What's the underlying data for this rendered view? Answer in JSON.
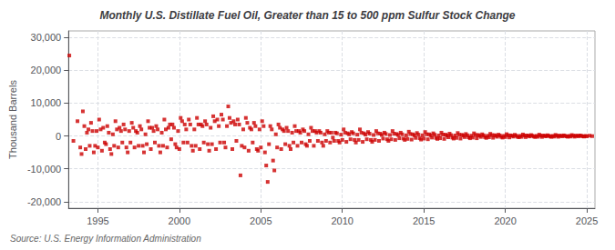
{
  "chart_data": {
    "type": "scatter",
    "title": "Monthly U.S. Distillate Fuel Oil, Greater than 15 to 500 ppm Sulfur Stock Change",
    "ylabel": "Thousand Barrels",
    "annotation": "Source: U.S. Energy Information Administration",
    "color": "#cc0000",
    "marker": "square",
    "grid": true,
    "xlim": [
      1993.2,
      2025.5
    ],
    "xticks": [
      1995,
      2000,
      2005,
      2010,
      2015,
      2020,
      2025
    ],
    "ylim": [
      -22000,
      32000
    ],
    "yticks": [
      {
        "value": -20000,
        "label": "-20,000"
      },
      {
        "value": -10000,
        "label": "-10,000"
      },
      0,
      {
        "value": 10000,
        "label": "10,000"
      },
      {
        "value": 20000,
        "label": "20,000"
      },
      {
        "value": 30000,
        "label": "30,000"
      }
    ],
    "x": [
      1993.25,
      1993.5,
      1993.75,
      1993.92,
      1994.0,
      1994.08,
      1994.17,
      1994.25,
      1994.33,
      1994.42,
      1994.5,
      1994.58,
      1994.67,
      1994.75,
      1994.83,
      1994.92,
      1995.0,
      1995.08,
      1995.17,
      1995.25,
      1995.33,
      1995.42,
      1995.5,
      1995.58,
      1995.67,
      1995.75,
      1995.83,
      1995.92,
      1996.0,
      1996.08,
      1996.17,
      1996.25,
      1996.33,
      1996.42,
      1996.5,
      1996.58,
      1996.67,
      1996.75,
      1996.83,
      1996.92,
      1997.0,
      1997.08,
      1997.17,
      1997.25,
      1997.33,
      1997.42,
      1997.5,
      1997.58,
      1997.67,
      1997.75,
      1997.83,
      1997.92,
      1998.0,
      1998.08,
      1998.17,
      1998.25,
      1998.33,
      1998.42,
      1998.5,
      1998.58,
      1998.67,
      1998.75,
      1998.83,
      1998.92,
      1999.0,
      1999.08,
      1999.17,
      1999.25,
      1999.33,
      1999.42,
      1999.5,
      1999.58,
      1999.67,
      1999.75,
      1999.83,
      1999.92,
      2000.0,
      2000.08,
      2000.17,
      2000.25,
      2000.33,
      2000.42,
      2000.5,
      2000.58,
      2000.67,
      2000.75,
      2000.83,
      2000.92,
      2001.0,
      2001.08,
      2001.17,
      2001.25,
      2001.33,
      2001.42,
      2001.5,
      2001.58,
      2001.67,
      2001.75,
      2001.83,
      2001.92,
      2002.0,
      2002.08,
      2002.17,
      2002.25,
      2002.33,
      2002.42,
      2002.5,
      2002.58,
      2002.67,
      2002.75,
      2002.83,
      2002.92,
      2003.0,
      2003.08,
      2003.17,
      2003.25,
      2003.33,
      2003.42,
      2003.5,
      2003.58,
      2003.67,
      2003.75,
      2003.83,
      2003.92,
      2004.0,
      2004.08,
      2004.17,
      2004.25,
      2004.33,
      2004.42,
      2004.5,
      2004.58,
      2004.67,
      2004.75,
      2004.83,
      2004.92,
      2005.0,
      2005.08,
      2005.17,
      2005.25,
      2005.33,
      2005.42,
      2005.5,
      2005.58,
      2005.67,
      2005.75,
      2005.83,
      2005.92,
      2006.0,
      2006.08,
      2006.17,
      2006.25,
      2006.33,
      2006.42,
      2006.5,
      2006.58,
      2006.67,
      2006.75,
      2006.83,
      2006.92,
      2007.0,
      2007.08,
      2007.17,
      2007.25,
      2007.33,
      2007.42,
      2007.5,
      2007.58,
      2007.67,
      2007.75,
      2007.83,
      2007.92,
      2008.0,
      2008.08,
      2008.17,
      2008.25,
      2008.33,
      2008.42,
      2008.5,
      2008.58,
      2008.67,
      2008.75,
      2008.83,
      2008.92,
      2009.0,
      2009.08,
      2009.17,
      2009.25,
      2009.33,
      2009.42,
      2009.5,
      2009.58,
      2009.67,
      2009.75,
      2009.83,
      2009.92,
      2010.0,
      2010.08,
      2010.17,
      2010.25,
      2010.33,
      2010.42,
      2010.5,
      2010.58,
      2010.67,
      2010.75,
      2010.83,
      2010.92,
      2011.0,
      2011.08,
      2011.17,
      2011.25,
      2011.33,
      2011.42,
      2011.5,
      2011.58,
      2011.67,
      2011.75,
      2011.83,
      2011.92,
      2012.0,
      2012.08,
      2012.17,
      2012.25,
      2012.33,
      2012.42,
      2012.5,
      2012.58,
      2012.67,
      2012.75,
      2012.83,
      2012.92,
      2013.0,
      2013.08,
      2013.17,
      2013.25,
      2013.33,
      2013.42,
      2013.5,
      2013.58,
      2013.67,
      2013.75,
      2013.83,
      2013.92,
      2014.0,
      2014.08,
      2014.17,
      2014.25,
      2014.33,
      2014.42,
      2014.5,
      2014.58,
      2014.67,
      2014.75,
      2014.83,
      2014.92,
      2015.0,
      2015.08,
      2015.17,
      2015.25,
      2015.33,
      2015.42,
      2015.5,
      2015.58,
      2015.67,
      2015.75,
      2015.83,
      2015.92,
      2016.0,
      2016.08,
      2016.17,
      2016.25,
      2016.33,
      2016.42,
      2016.5,
      2016.58,
      2016.67,
      2016.75,
      2016.83,
      2016.92,
      2017.0,
      2017.08,
      2017.17,
      2017.25,
      2017.33,
      2017.42,
      2017.5,
      2017.58,
      2017.67,
      2017.75,
      2017.83,
      2017.92,
      2018.0,
      2018.08,
      2018.17,
      2018.25,
      2018.33,
      2018.42,
      2018.5,
      2018.58,
      2018.67,
      2018.75,
      2018.83,
      2018.92,
      2019.0,
      2019.08,
      2019.17,
      2019.25,
      2019.33,
      2019.42,
      2019.5,
      2019.58,
      2019.67,
      2019.75,
      2019.83,
      2019.92,
      2020.0,
      2020.08,
      2020.17,
      2020.25,
      2020.33,
      2020.42,
      2020.5,
      2020.58,
      2020.67,
      2020.75,
      2020.83,
      2020.92,
      2021.0,
      2021.08,
      2021.17,
      2021.25,
      2021.33,
      2021.42,
      2021.5,
      2021.58,
      2021.67,
      2021.75,
      2021.83,
      2021.92,
      2022.0,
      2022.08,
      2022.17,
      2022.25,
      2022.33,
      2022.42,
      2022.5,
      2022.58,
      2022.67,
      2022.75,
      2022.83,
      2022.92,
      2023.0,
      2023.08,
      2023.17,
      2023.25,
      2023.33,
      2023.42,
      2023.5,
      2023.58,
      2023.67,
      2023.75,
      2023.83,
      2023.92,
      2024.0,
      2024.08,
      2024.17,
      2024.25,
      2024.33,
      2024.42,
      2024.5,
      2024.58,
      2024.67,
      2024.75,
      2024.83,
      2024.92,
      2025.0,
      2025.17,
      2025.33
    ],
    "values": [
      24500,
      -1500,
      4500,
      -3500,
      -5500,
      7500,
      3000,
      -4000,
      1000,
      2000,
      -3000,
      4000,
      1500,
      -5000,
      -3000,
      1500,
      -3500,
      5000,
      2000,
      -4500,
      2500,
      -2000,
      -2500,
      3000,
      1000,
      -4000,
      -5500,
      500,
      -3000,
      4500,
      2000,
      -3500,
      2500,
      1500,
      -2000,
      3500,
      2000,
      -3500,
      -5000,
      1500,
      -2000,
      4000,
      2500,
      -3500,
      1500,
      1000,
      -3000,
      3000,
      2000,
      -3000,
      -5000,
      500,
      -2500,
      4500,
      2500,
      -4000,
      2500,
      1500,
      -2000,
      3000,
      2000,
      -3000,
      -5000,
      1000,
      -3000,
      5000,
      2000,
      -3500,
      2500,
      3500,
      -1000,
      3500,
      2500,
      -2500,
      -3500,
      1500,
      -4000,
      5500,
      4500,
      -2000,
      3500,
      2000,
      -2000,
      5000,
      3500,
      -3000,
      -4500,
      2000,
      -3000,
      5500,
      3500,
      -4000,
      3500,
      3000,
      -2000,
      4500,
      3500,
      -2500,
      -4500,
      2500,
      -2500,
      6000,
      4500,
      -4000,
      5000,
      3000,
      -2000,
      6500,
      5000,
      -2000,
      -3500,
      3000,
      9000,
      5500,
      4000,
      -4000,
      4500,
      3500,
      -1500,
      5000,
      3500,
      -12000,
      -3000,
      2000,
      -3500,
      5500,
      4000,
      -4500,
      2500,
      2000,
      -2000,
      4000,
      3000,
      -4000,
      -4500,
      2000,
      -3500,
      4500,
      3000,
      -5000,
      -9000,
      -14000,
      -2500,
      3000,
      2000,
      -7500,
      -10500,
      500,
      -3500,
      3500,
      2500,
      -4000,
      2000,
      1500,
      -2500,
      2500,
      1500,
      -3000,
      -4000,
      1000,
      -2000,
      3000,
      1500,
      -3000,
      1500,
      1000,
      -2000,
      2000,
      1500,
      -2500,
      -3000,
      500,
      -1500,
      2500,
      1500,
      -3000,
      1500,
      1000,
      -1500,
      1500,
      1000,
      -2000,
      -3000,
      500,
      -1500,
      1500,
      1000,
      -2000,
      1000,
      -500,
      -1500,
      1000,
      800,
      -1500,
      -2000,
      400,
      -1200,
      2000,
      1000,
      -1800,
      800,
      500,
      -1000,
      1200,
      800,
      -1200,
      -2000,
      400,
      -1200,
      2000,
      1000,
      -1800,
      800,
      400,
      -1000,
      1200,
      700,
      -1200,
      -1800,
      300,
      -1200,
      1500,
      800,
      -1500,
      700,
      300,
      -800,
      1000,
      600,
      -1000,
      -1500,
      300,
      -1000,
      1500,
      700,
      -1200,
      600,
      300,
      -700,
      1000,
      500,
      -800,
      -1200,
      200,
      -900,
      1300,
      600,
      -1100,
      500,
      200,
      -600,
      900,
      400,
      -700,
      -1100,
      200,
      -800,
      1200,
      500,
      -1000,
      500,
      200,
      -500,
      800,
      350,
      -600,
      -900,
      150,
      -700,
      1000,
      400,
      -900,
      400,
      150,
      -400,
      700,
      250,
      -500,
      -800,
      150,
      -600,
      900,
      350,
      -800,
      350,
      150,
      -350,
      600,
      200,
      -400,
      -700,
      100,
      -500,
      800,
      300,
      -700,
      300,
      100,
      -300,
      500,
      180,
      -350,
      -600,
      80,
      -400,
      650,
      250,
      -550,
      250,
      80,
      -250,
      400,
      150,
      -280,
      -500,
      60,
      -350,
      550,
      200,
      -450,
      180,
      60,
      -200,
      350,
      100,
      -250,
      -400,
      50,
      -280,
      450,
      150,
      -350,
      150,
      50,
      -150,
      280,
      80,
      -180,
      -320,
      40,
      -250,
      400,
      120,
      -300,
      120,
      40,
      -130,
      220,
      70,
      -160,
      -280,
      30,
      -200,
      320,
      100,
      -250,
      90,
      30,
      -100,
      180,
      50,
      -130,
      -240,
      25,
      -180,
      280,
      90,
      -220,
      80,
      25,
      -80,
      160,
      40,
      -100,
      -180,
      20,
      -100,
      80,
      -50
    ]
  }
}
